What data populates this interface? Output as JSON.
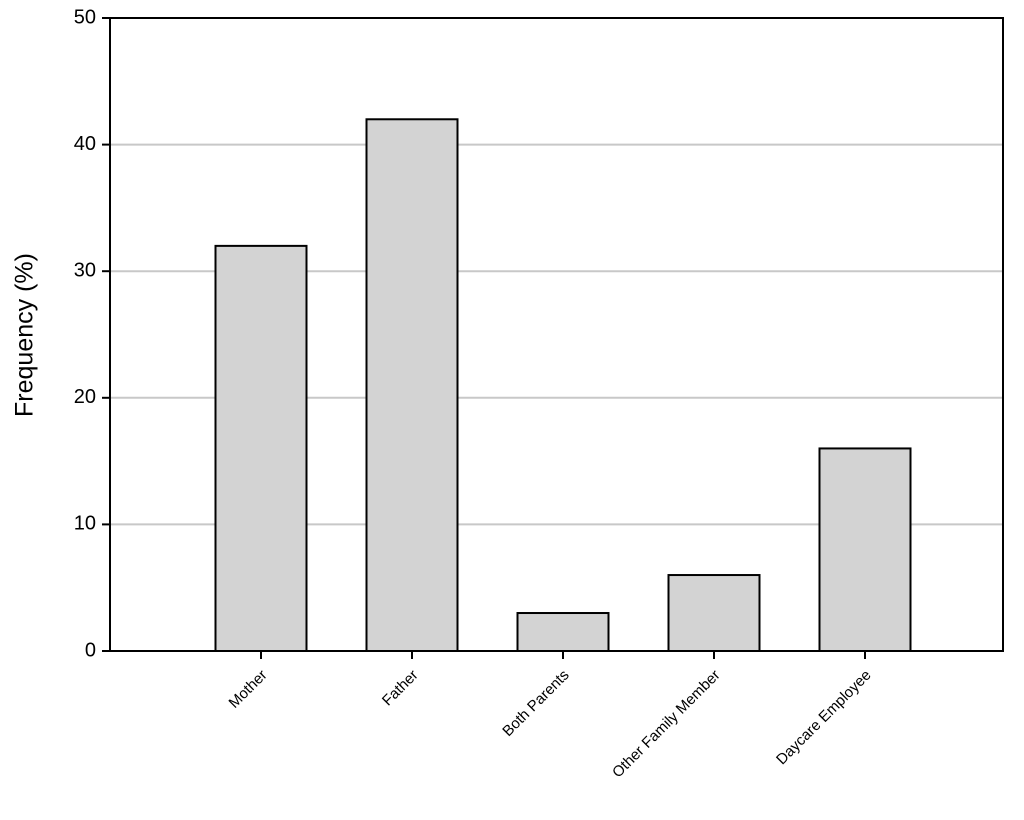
{
  "chart_data": {
    "type": "bar",
    "y_label": "Frequency (%)",
    "categories": [
      "Mother",
      "Father",
      "Both Parents",
      "Other Family Member",
      "Daycare Employee"
    ],
    "values": [
      32,
      42,
      3,
      6,
      16
    ],
    "color": "#d3d3d3",
    "ylim": [
      0,
      50
    ],
    "yticks": [
      0,
      10,
      20,
      30,
      40,
      50
    ],
    "grid": true
  }
}
